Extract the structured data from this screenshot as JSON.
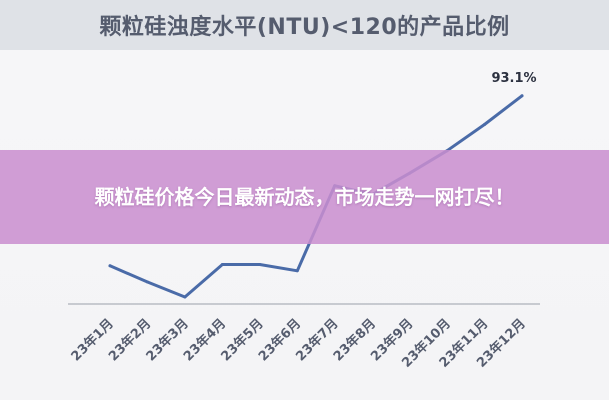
{
  "title": "颗粒硅浊度水平(NTU)<120的产品比例",
  "overlay_headline": "颗粒硅价格今日最新动态，市场走势一网打尽！",
  "colors": {
    "line": "#4a6ba8",
    "title_band": "#dfe2e7",
    "overlay": "#c98ecf",
    "axis": "#9aa0aa"
  },
  "chart_data": {
    "type": "line",
    "title": "颗粒硅浊度水平(NTU)<120的产品比例",
    "xlabel": "",
    "ylabel": "",
    "categories": [
      "23年1月",
      "23年2月",
      "23年3月",
      "23年4月",
      "23年5月",
      "23年6月",
      "23年7月",
      "23年8月",
      "23年9月",
      "23年10月",
      "23年11月",
      "23年12月"
    ],
    "series": [
      {
        "values": [
          79.5,
          78.2,
          77.0,
          79.6,
          79.6,
          79.1,
          85.9,
          85.2,
          86.9,
          88.7,
          90.8,
          93.1
        ]
      }
    ],
    "data_labels": [
      {
        "category": "23年12月",
        "text": "93.1%"
      }
    ],
    "ylim": [
      75,
      95
    ],
    "grid": false,
    "legend": "none"
  }
}
